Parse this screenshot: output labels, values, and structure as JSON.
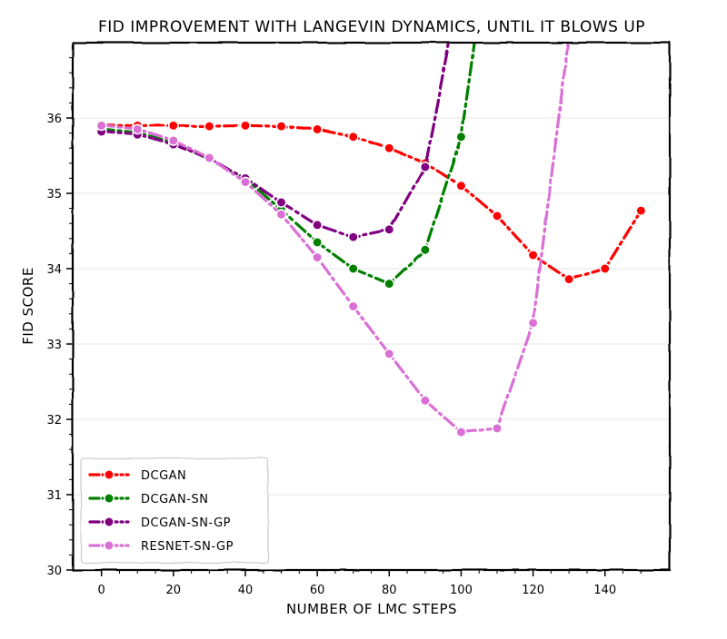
{
  "chart_data": {
    "type": "line",
    "title": "FID IMPROVEMENT WITH LANGEVIN DYNAMICS, UNTIL IT BLOWS UP",
    "xlabel": "NUMBER OF LMC STEPS",
    "ylabel": "FID SCORE",
    "xlim": [
      -8,
      158
    ],
    "ylim": [
      30,
      37
    ],
    "xticks": [
      0,
      20,
      40,
      60,
      80,
      100,
      120,
      140
    ],
    "yticks": [
      30,
      31,
      32,
      33,
      34,
      35,
      36
    ],
    "grid": "horizontal",
    "legend_position": "bottom-left",
    "reference_line": {
      "y": 35.9,
      "style": "dotted",
      "color": "#808080"
    },
    "series": [
      {
        "name": "DCGAN",
        "color": "#ff0000",
        "x": [
          0,
          10,
          20,
          30,
          40,
          50,
          60,
          70,
          80,
          90,
          100,
          110,
          120,
          130,
          140,
          150
        ],
        "y": [
          35.9,
          35.9,
          35.9,
          35.89,
          35.9,
          35.89,
          35.85,
          35.75,
          35.6,
          35.4,
          35.1,
          34.7,
          34.18,
          33.86,
          34.0,
          34.77
        ]
      },
      {
        "name": "DCGAN-SN",
        "color": "#008000",
        "x": [
          0,
          10,
          20,
          30,
          40,
          50,
          60,
          70,
          80,
          90,
          100,
          104
        ],
        "y": [
          35.85,
          35.8,
          35.67,
          35.45,
          35.2,
          34.78,
          34.35,
          34.0,
          33.8,
          34.25,
          35.75,
          37.1
        ]
      },
      {
        "name": "DCGAN-SN-GP",
        "color": "#800080",
        "x": [
          0,
          10,
          20,
          30,
          40,
          50,
          60,
          70,
          80,
          90,
          97
        ],
        "y": [
          35.82,
          35.78,
          35.65,
          35.46,
          35.2,
          34.88,
          34.58,
          34.42,
          34.52,
          35.35,
          37.1
        ]
      },
      {
        "name": "RESNET-SN-GP",
        "color": "#da70d6",
        "x": [
          0,
          10,
          20,
          30,
          40,
          50,
          60,
          70,
          80,
          90,
          100,
          110,
          120,
          130
        ],
        "y": [
          35.9,
          35.85,
          35.7,
          35.47,
          35.15,
          34.72,
          34.15,
          33.5,
          32.87,
          32.25,
          31.83,
          31.88,
          33.28,
          37.1
        ]
      }
    ]
  }
}
